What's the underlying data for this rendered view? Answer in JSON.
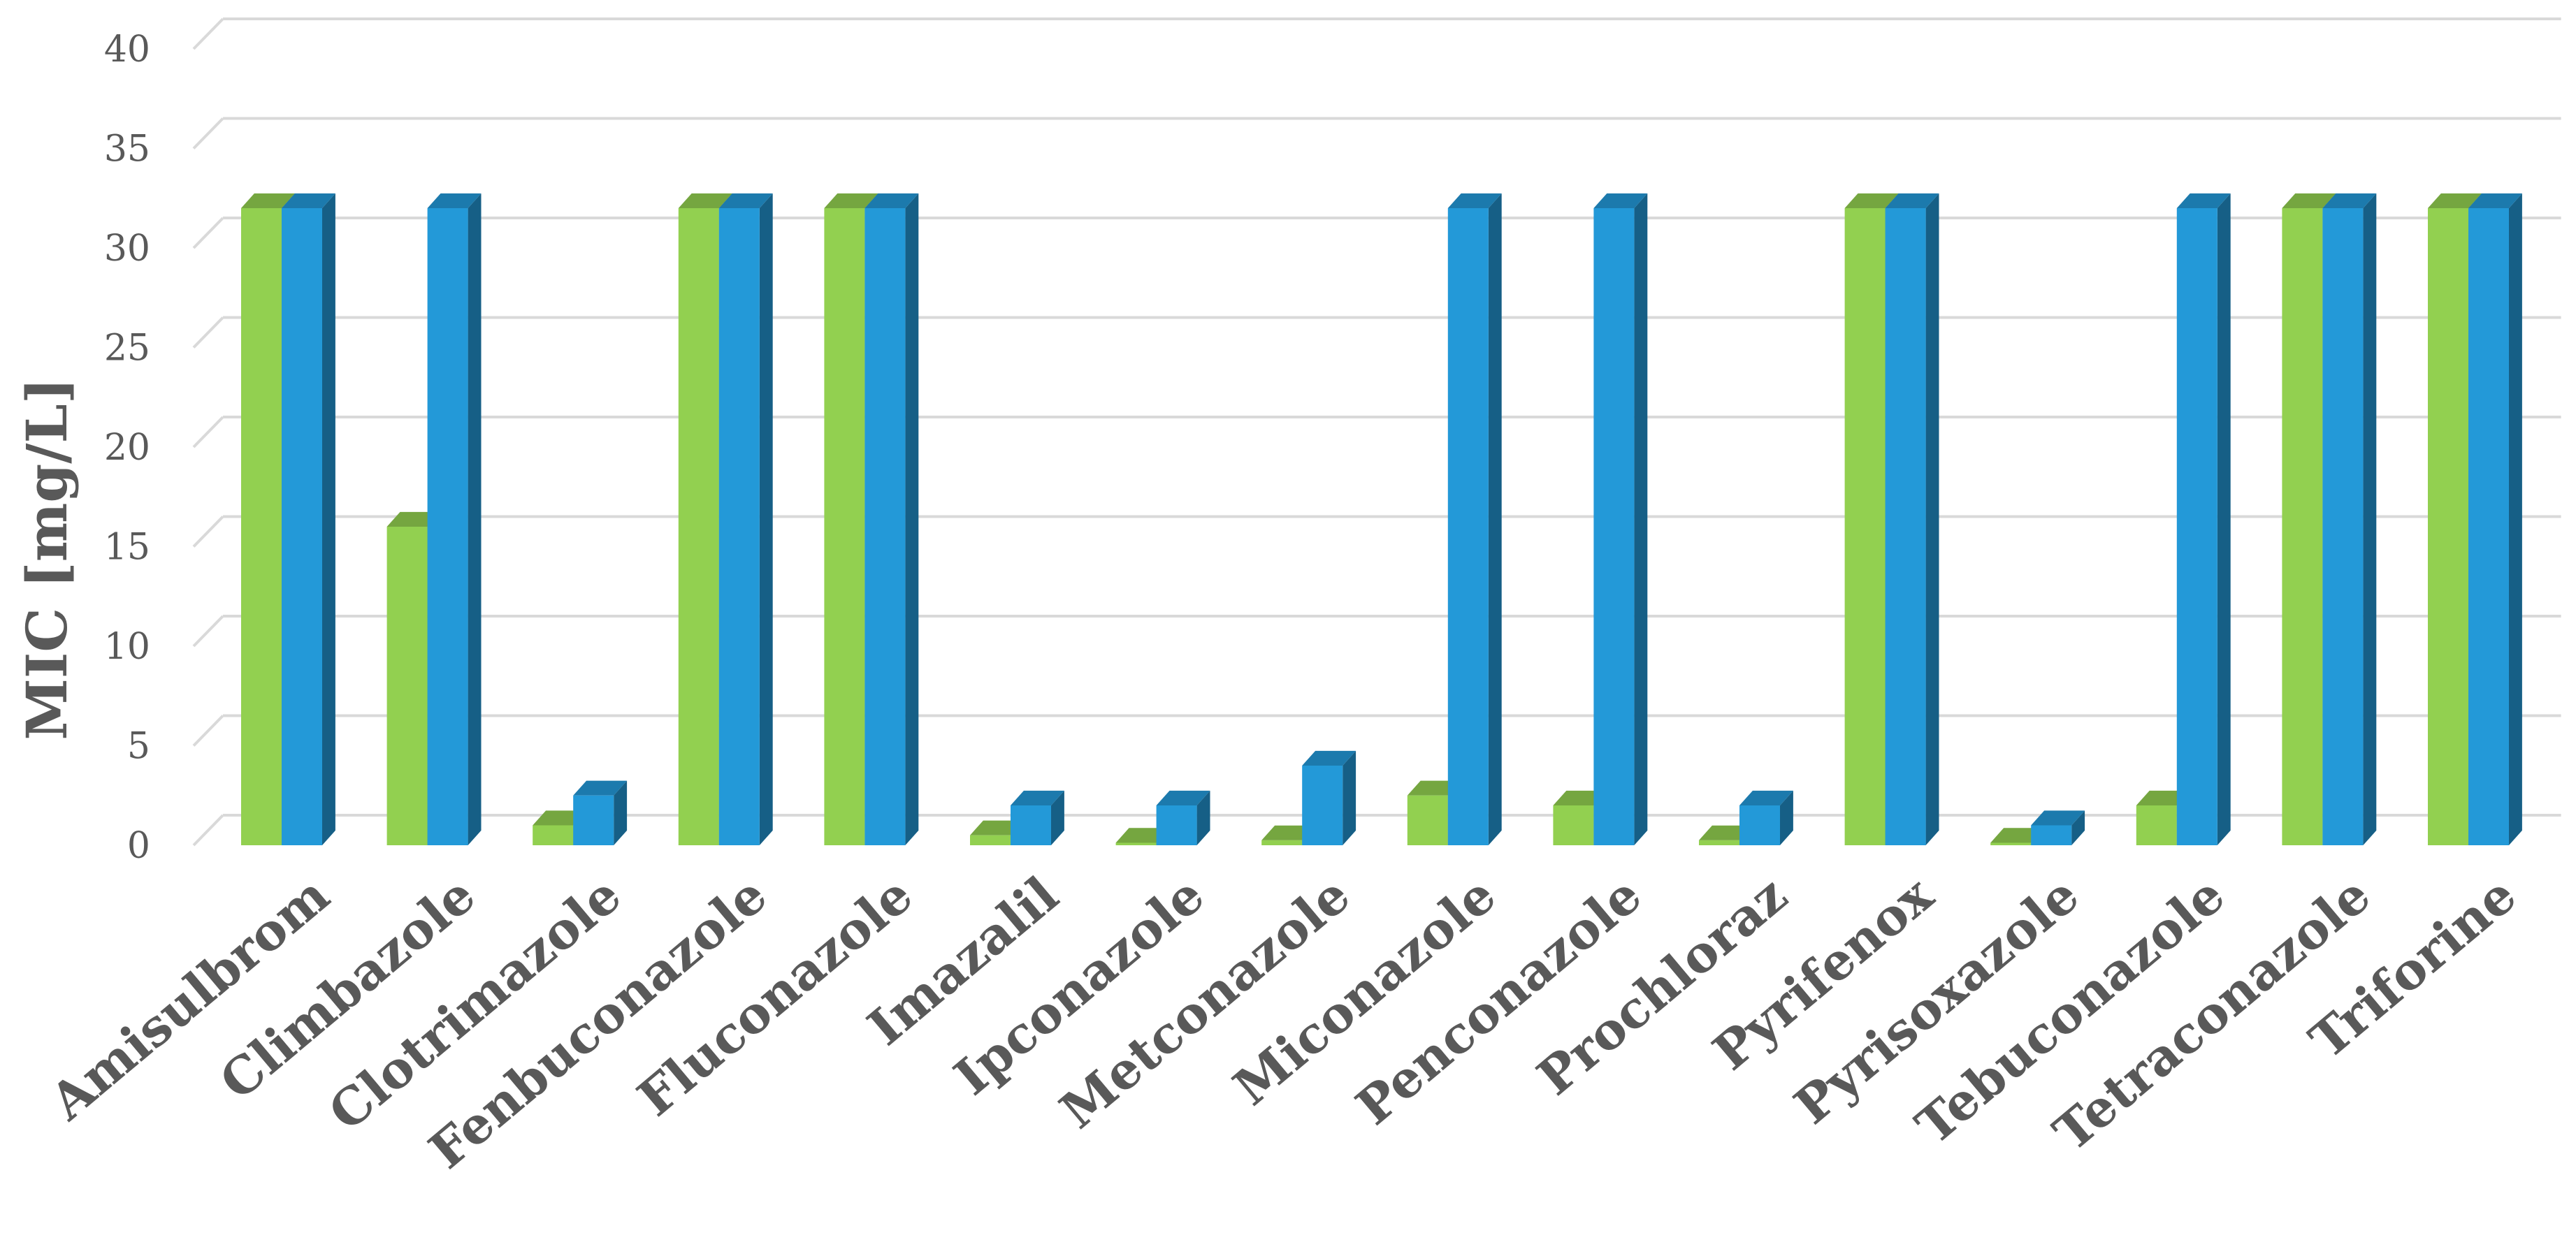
{
  "chart_data": {
    "type": "bar",
    "style": "3d-clustered-column",
    "title": "",
    "xlabel": "",
    "ylabel": "MIC [mg/L]",
    "ylim": [
      0,
      40
    ],
    "yticks": [
      "0",
      "5",
      "10",
      "15",
      "20",
      "25",
      "30",
      "35",
      "40"
    ],
    "grid": true,
    "legend": "none",
    "categories": [
      "Amisulbrom",
      "Climbazole",
      "Clotrimazole",
      "Fenbuconazole",
      "Fluconazole",
      "Imazalil",
      "Ipconazole",
      "Metconazole",
      "Miconazole",
      "Penconazole",
      "Prochloraz",
      "Pyrifenox",
      "Pyrisoxazole",
      "Tebuconazole",
      "Tetraconazole",
      "Triforine"
    ],
    "series": [
      {
        "color": "#92d050",
        "values": [
          32,
          16,
          1,
          32,
          32,
          0.5,
          0.125,
          0.25,
          2.5,
          2,
          0.25,
          32,
          0.125,
          2,
          32,
          32
        ]
      },
      {
        "color": "#2399d8",
        "values": [
          32,
          32,
          2.5,
          32,
          32,
          2,
          2,
          4,
          32,
          32,
          2,
          32,
          1,
          32,
          32,
          32
        ]
      }
    ]
  }
}
